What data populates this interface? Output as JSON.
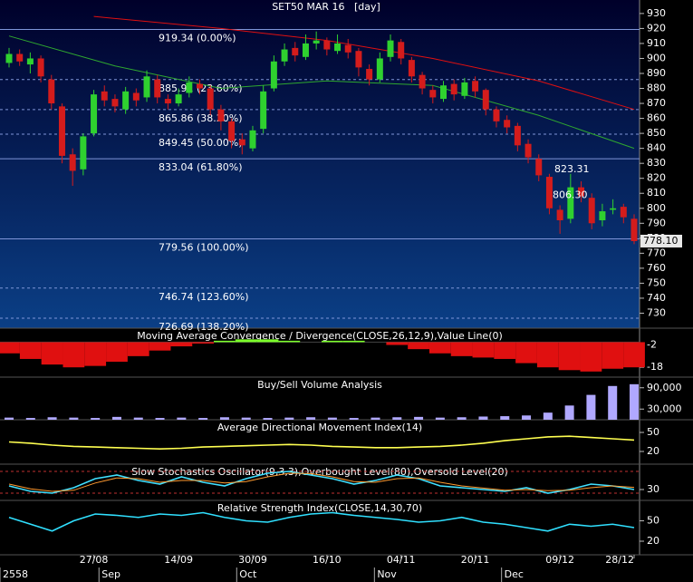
{
  "chart_data": [
    {
      "type": "candlestick",
      "title": "SET50 MAR 16   [day]",
      "open": [
        897,
        903,
        896,
        900,
        886,
        868,
        836,
        826,
        850,
        878,
        873,
        866,
        877,
        874,
        886,
        873,
        870,
        877,
        883,
        880,
        866,
        858,
        846,
        840,
        853,
        880,
        898,
        907,
        901,
        910,
        912,
        905,
        909,
        905,
        893,
        886,
        901,
        911,
        899,
        889,
        879,
        873,
        883,
        875,
        885,
        879,
        866,
        859,
        855,
        843,
        833,
        821,
        799,
        793,
        814,
        807,
        792,
        799,
        801,
        793
      ],
      "high": [
        907,
        906,
        904,
        902,
        889,
        870,
        840,
        850,
        879,
        882,
        876,
        881,
        880,
        892,
        889,
        876,
        880,
        888,
        886,
        882,
        869,
        860,
        850,
        855,
        882,
        902,
        910,
        911,
        916,
        918,
        914,
        916,
        913,
        907,
        896,
        904,
        916,
        913,
        901,
        891,
        882,
        885,
        886,
        887,
        888,
        880,
        868,
        862,
        857,
        846,
        836,
        823,
        802,
        823,
        818,
        810,
        803,
        806,
        803,
        796
      ],
      "low": [
        894,
        895,
        890,
        884,
        866,
        830,
        815,
        822,
        848,
        868,
        864,
        863,
        868,
        871,
        870,
        866,
        868,
        874,
        876,
        862,
        852,
        840,
        836,
        838,
        850,
        878,
        895,
        898,
        899,
        906,
        902,
        903,
        900,
        888,
        882,
        884,
        898,
        896,
        884,
        876,
        870,
        871,
        872,
        873,
        874,
        862,
        854,
        850,
        838,
        830,
        818,
        796,
        783,
        790,
        804,
        786,
        788,
        796,
        790,
        776
      ],
      "close": [
        903,
        898,
        900,
        888,
        870,
        835,
        825,
        848,
        876,
        872,
        868,
        878,
        872,
        888,
        874,
        870,
        876,
        884,
        880,
        866,
        858,
        845,
        842,
        852,
        878,
        898,
        906,
        902,
        910,
        912,
        906,
        910,
        904,
        894,
        886,
        900,
        912,
        900,
        888,
        880,
        874,
        882,
        876,
        884,
        878,
        866,
        858,
        854,
        842,
        834,
        822,
        800,
        792,
        814,
        808,
        790,
        798,
        800,
        794,
        778.1
      ],
      "up_color": "#2fd12f",
      "down_color": "#d41c1c",
      "series": [
        {
          "color": "#e01010",
          "x": [
            8,
            20,
            30,
            40,
            50,
            59
          ],
          "values": [
            928,
            920,
            912,
            900,
            885,
            866
          ]
        },
        {
          "color": "#2fa82f",
          "x": [
            0,
            10,
            20,
            30,
            40,
            50,
            59
          ],
          "values": [
            915,
            895,
            880,
            885,
            882,
            862,
            840
          ]
        }
      ],
      "levels": [
        {
          "value": 919.34,
          "label": "919.34 (0.00%)",
          "style": "solid"
        },
        {
          "value": 885.91,
          "label": "885.91 (23.60%)",
          "style": "dashed"
        },
        {
          "value": 865.86,
          "label": "865.86 (38.20%)",
          "style": "dashed"
        },
        {
          "value": 849.45,
          "label": "849.45 (50.00%)",
          "style": "dashed"
        },
        {
          "value": 833.04,
          "label": "833.04 (61.80%)",
          "style": "solid"
        },
        {
          "value": 779.56,
          "label": "779.56 (100.00%)",
          "style": "solid"
        },
        {
          "value": 746.74,
          "label": "746.74 (123.60%)",
          "style": "dashed"
        },
        {
          "value": 726.69,
          "label": "726.69 (138.20%)",
          "style": "dashed"
        }
      ],
      "annotations": [
        {
          "value": 823.31,
          "label": "823.31"
        },
        {
          "value": 806.3,
          "label": "806.30"
        }
      ],
      "last_price": {
        "value": 778.1,
        "label": "778.10"
      },
      "ylim": [
        720,
        939
      ],
      "yticks": [
        730,
        740,
        750,
        760,
        770,
        780,
        790,
        800,
        810,
        820,
        830,
        840,
        850,
        860,
        870,
        880,
        890,
        900,
        910,
        920,
        930
      ]
    },
    {
      "type": "histogram-line",
      "title": "Moving Average Convergence / Divergence(CLOSE,26,12,9),Value Line(0)",
      "values": [
        -8,
        -12,
        -16,
        -18,
        -17,
        -14,
        -10,
        -6,
        -3,
        -1,
        1,
        2,
        2,
        1,
        0,
        1,
        1,
        0,
        -2,
        -5,
        -8,
        -10,
        -11,
        -12,
        -15,
        -18,
        -20,
        -21,
        -19,
        -18
      ],
      "pos_color": "#7cff2a",
      "neg_color": "#e01010",
      "ylim": [
        -25,
        10
      ],
      "yticks": [
        -2,
        -18
      ]
    },
    {
      "type": "bar",
      "title": "Buy/Sell Volume Analysis",
      "values": [
        6000,
        5000,
        7000,
        6000,
        5000,
        8000,
        6000,
        5000,
        6000,
        5000,
        7000,
        6000,
        5000,
        6000,
        7000,
        6000,
        5000,
        6000,
        7000,
        8000,
        6000,
        7000,
        9000,
        10000,
        12000,
        20000,
        40000,
        70000,
        95000,
        100000
      ],
      "color": "#b0a8ff",
      "ylim": [
        0,
        120000
      ],
      "yticks": [
        {
          "value": 90000,
          "label": "90,000"
        },
        {
          "value": 30000,
          "label": "30,000"
        }
      ]
    },
    {
      "type": "line",
      "title": "Average Directional Movement Index(14)",
      "series": [
        {
          "color": "#ffff50",
          "values": [
            35,
            33,
            30,
            28,
            27,
            26,
            25,
            24,
            25,
            27,
            28,
            29,
            30,
            31,
            30,
            28,
            27,
            26,
            26,
            27,
            28,
            30,
            33,
            37,
            40,
            43,
            44,
            42,
            40,
            38
          ]
        }
      ],
      "ylim": [
        0,
        70
      ],
      "yticks": [
        50,
        20
      ]
    },
    {
      "type": "line",
      "title": "Slow Stochastics Oscillator(9,3,3),Overbought Level(80),Oversold Level(20)",
      "series": [
        {
          "color": "#40e0ff",
          "values": [
            40,
            25,
            20,
            35,
            60,
            70,
            55,
            45,
            65,
            50,
            40,
            60,
            75,
            80,
            70,
            60,
            45,
            55,
            70,
            60,
            40,
            35,
            30,
            25,
            35,
            20,
            30,
            45,
            40,
            30
          ]
        },
        {
          "color": "#ff9a30",
          "values": [
            45,
            32,
            25,
            28,
            48,
            62,
            60,
            50,
            55,
            55,
            48,
            52,
            65,
            75,
            74,
            65,
            52,
            50,
            60,
            62,
            50,
            40,
            34,
            28,
            30,
            27,
            28,
            35,
            40,
            36
          ]
        }
      ],
      "levels": [
        80,
        20
      ],
      "ylim": [
        0,
        100
      ],
      "yticks": [
        30
      ]
    },
    {
      "type": "line",
      "title": "Relative Strength Index(CLOSE,14,30,70)",
      "series": [
        {
          "color": "#30e0ff",
          "values": [
            55,
            45,
            35,
            50,
            60,
            58,
            55,
            60,
            58,
            62,
            55,
            50,
            48,
            55,
            60,
            62,
            58,
            55,
            52,
            48,
            50,
            55,
            48,
            45,
            40,
            35,
            45,
            42,
            45,
            40
          ]
        }
      ],
      "ylim": [
        0,
        80
      ],
      "yticks": [
        50,
        20
      ]
    }
  ],
  "x_axis": {
    "dates": [
      null,
      null,
      null,
      null,
      null,
      null,
      null,
      null,
      "27/08",
      null,
      null,
      null,
      null,
      null,
      null,
      null,
      "14/09",
      null,
      null,
      null,
      null,
      null,
      null,
      "30/09",
      null,
      null,
      null,
      null,
      null,
      null,
      "16/10",
      null,
      null,
      null,
      null,
      null,
      null,
      "04/11",
      null,
      null,
      null,
      null,
      null,
      null,
      "20/11",
      null,
      null,
      null,
      null,
      null,
      null,
      null,
      "09/12",
      null,
      null,
      null,
      null,
      null,
      null,
      "28/12"
    ],
    "months": [
      "2558",
      null,
      null,
      null,
      null,
      null,
      null,
      null,
      null,
      "Sep",
      null,
      null,
      null,
      null,
      null,
      null,
      null,
      null,
      null,
      null,
      null,
      null,
      "Oct",
      null,
      null,
      null,
      null,
      null,
      null,
      null,
      null,
      null,
      null,
      null,
      null,
      "Nov",
      null,
      null,
      null,
      null,
      null,
      null,
      null,
      null,
      null,
      null,
      null,
      "Dec",
      null,
      null,
      null,
      null,
      null,
      null,
      null,
      null,
      null,
      null,
      null,
      null
    ]
  }
}
